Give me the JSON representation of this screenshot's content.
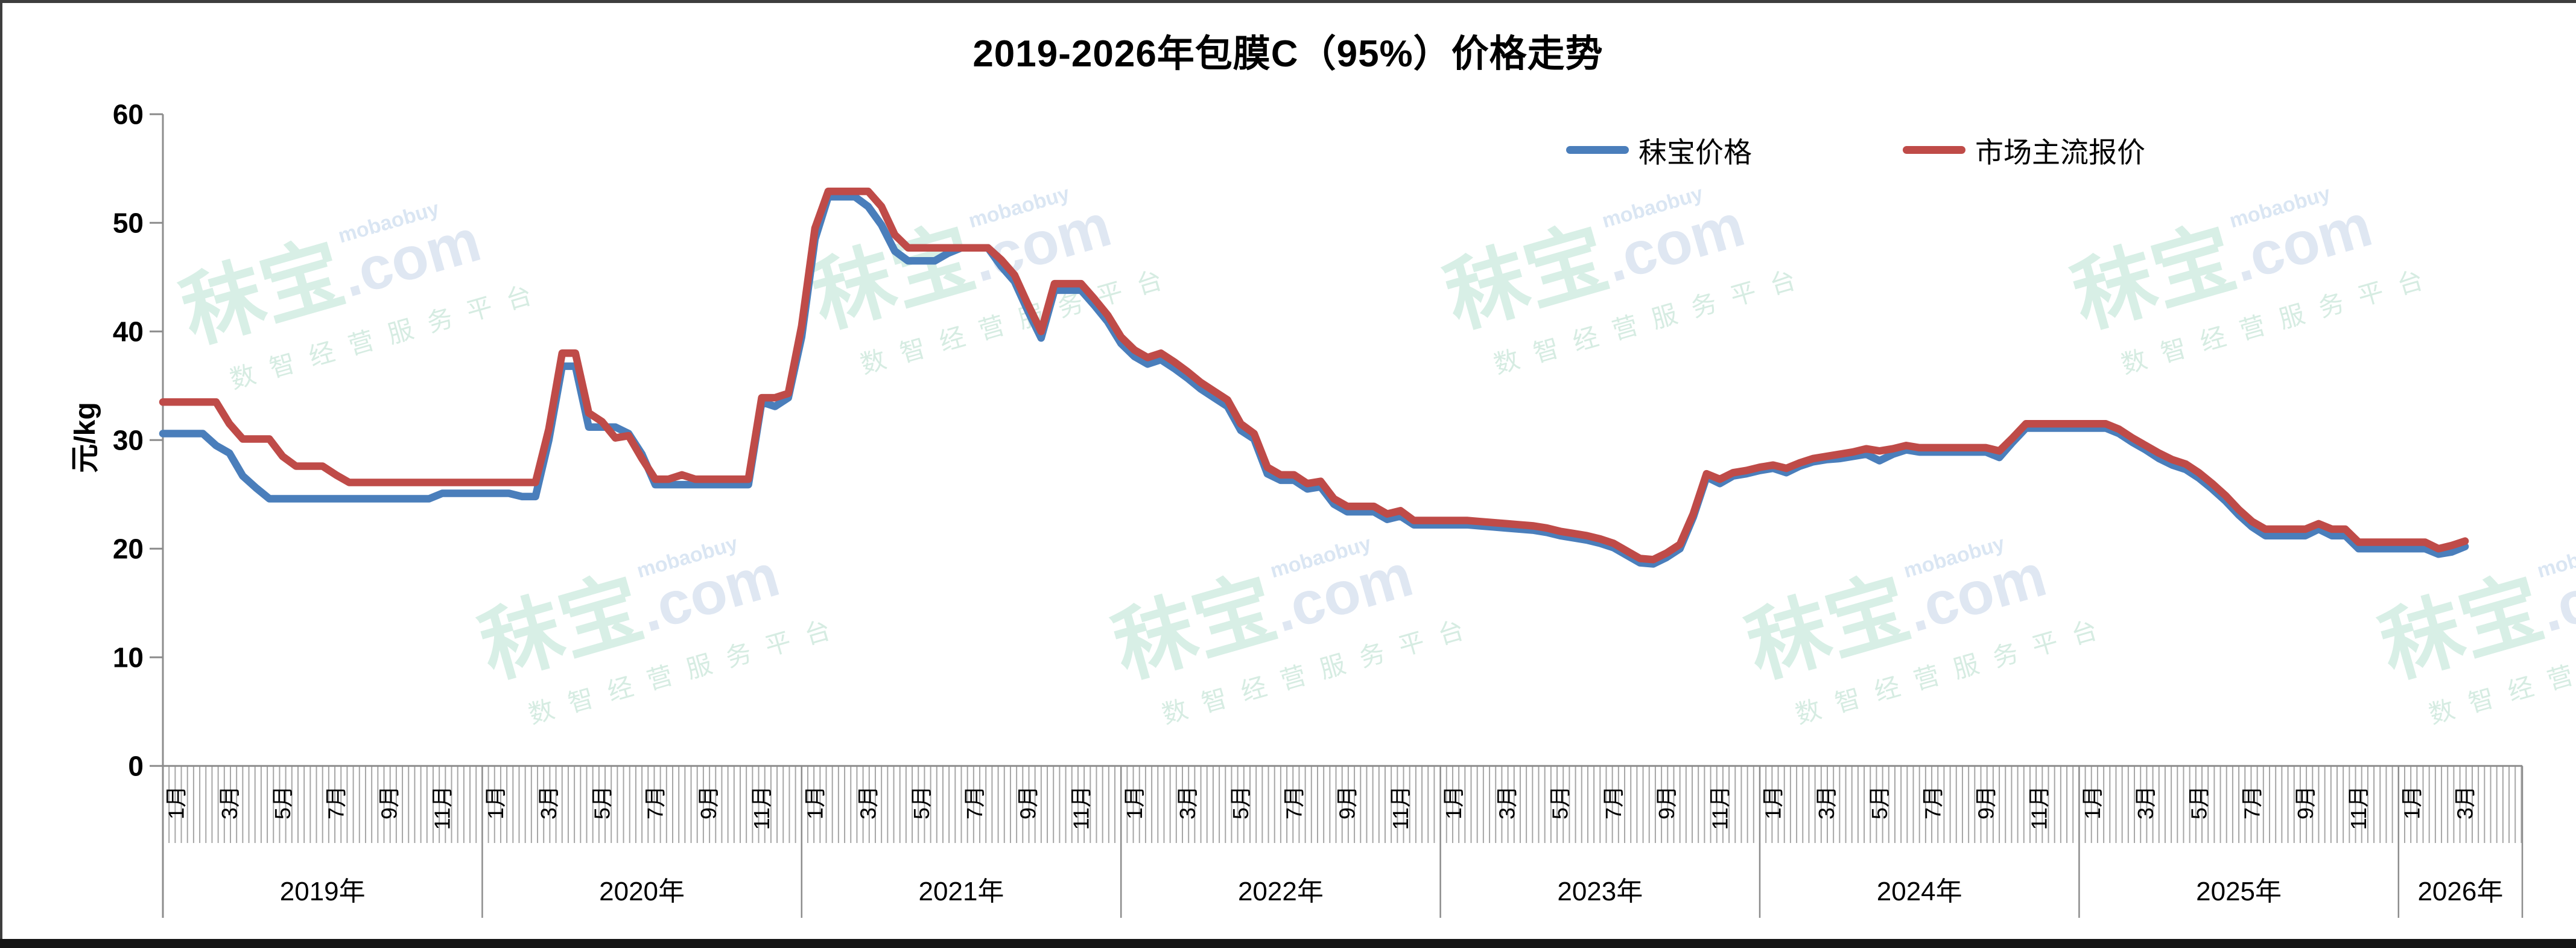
{
  "header": {
    "title": "2019-2026年包膜C（95%）价格走势"
  },
  "legend": {
    "items": [
      {
        "label": "秣宝价格",
        "color": "#4a7ebb"
      },
      {
        "label": "市场主流报价",
        "color": "#bf4b48"
      }
    ]
  },
  "y_axis": {
    "label": "元/kg"
  },
  "watermark": {
    "brand": "秣宝",
    "domain": ".com",
    "latin": "mobaobuy",
    "tagline": "数智经营服务平台"
  },
  "chart_data": {
    "type": "line",
    "title": "2019-2026年包膜C（95%）价格走势",
    "xlabel": "",
    "ylabel": "元/kg",
    "ylim": [
      0,
      60
    ],
    "yticks": [
      0,
      10,
      20,
      30,
      40,
      50,
      60
    ],
    "grid": false,
    "legend_position": "top-right",
    "x_unit": "months since 2019-01; points sampled every half month (step 0.5)",
    "x_start": 0,
    "x_step": 0.5,
    "x_axis": {
      "years": [
        {
          "label": "2019年",
          "months": [
            "1月",
            "3月",
            "5月",
            "7月",
            "9月",
            "11月"
          ]
        },
        {
          "label": "2020年",
          "months": [
            "1月",
            "3月",
            "5月",
            "7月",
            "9月",
            "11月"
          ]
        },
        {
          "label": "2021年",
          "months": [
            "1月",
            "3月",
            "5月",
            "7月",
            "9月",
            "11月"
          ]
        },
        {
          "label": "2022年",
          "months": [
            "1月",
            "3月",
            "5月",
            "7月",
            "9月",
            "11月"
          ]
        },
        {
          "label": "2023年",
          "months": [
            "1月",
            "3月",
            "5月",
            "7月",
            "9月",
            "11月"
          ]
        },
        {
          "label": "2024年",
          "months": [
            "1月",
            "3月",
            "5月",
            "7月",
            "9月",
            "11月"
          ]
        },
        {
          "label": "2025年",
          "months": [
            "1月",
            "3月",
            "5月",
            "7月",
            "9月",
            "11月"
          ]
        },
        {
          "label": "2026年",
          "months": [
            "1月",
            "3月"
          ]
        }
      ]
    },
    "series": [
      {
        "name": "秣宝价格",
        "color": "#4a7ebb",
        "values": [
          30.6,
          30.6,
          30.6,
          30.6,
          29.5,
          28.8,
          26.7,
          25.6,
          24.6,
          24.6,
          24.6,
          24.6,
          24.6,
          24.6,
          24.6,
          24.6,
          24.6,
          24.6,
          24.6,
          24.6,
          24.6,
          25.1,
          25.1,
          25.1,
          25.1,
          25.1,
          25.1,
          24.8,
          24.8,
          30.0,
          36.8,
          36.8,
          31.2,
          31.2,
          31.2,
          30.6,
          28.7,
          25.9,
          25.9,
          25.9,
          25.9,
          25.9,
          25.9,
          25.9,
          25.9,
          33.5,
          33.1,
          33.9,
          39.5,
          48.5,
          52.4,
          52.4,
          52.4,
          51.5,
          49.8,
          47.4,
          46.5,
          46.5,
          46.5,
          47.2,
          47.7,
          47.7,
          47.7,
          46.0,
          44.6,
          41.9,
          39.4,
          43.8,
          43.8,
          43.8,
          42.4,
          40.9,
          38.9,
          37.7,
          37.0,
          37.4,
          36.6,
          35.7,
          34.7,
          33.9,
          33.1,
          30.9,
          30.1,
          26.9,
          26.3,
          26.3,
          25.5,
          25.7,
          24.1,
          23.4,
          23.4,
          23.4,
          22.7,
          23.0,
          22.2,
          22.2,
          22.2,
          22.2,
          22.2,
          22.1,
          22.0,
          21.9,
          21.8,
          21.7,
          21.5,
          21.2,
          21.0,
          20.8,
          20.5,
          20.1,
          19.4,
          18.7,
          18.6,
          19.2,
          20.0,
          22.9,
          26.6,
          26.0,
          26.7,
          26.9,
          27.2,
          27.4,
          27.0,
          27.6,
          28.0,
          28.2,
          28.3,
          28.5,
          28.7,
          28.1,
          28.7,
          29.1,
          28.9,
          28.9,
          28.9,
          28.9,
          28.9,
          28.9,
          28.4,
          29.8,
          31.1,
          31.1,
          31.1,
          31.1,
          31.1,
          31.1,
          31.1,
          30.6,
          29.8,
          29.1,
          28.3,
          27.7,
          27.3,
          26.5,
          25.5,
          24.4,
          23.1,
          22.0,
          21.2,
          21.2,
          21.2,
          21.2,
          21.8,
          21.2,
          21.2,
          20.0,
          20.0,
          20.0,
          20.0,
          20.0,
          20.0,
          19.5,
          19.7,
          20.2
        ]
      },
      {
        "name": "市场主流报价",
        "color": "#bf4b48",
        "values": [
          33.5,
          33.5,
          33.5,
          33.5,
          33.5,
          31.5,
          30.1,
          30.1,
          30.1,
          28.5,
          27.6,
          27.6,
          27.6,
          26.8,
          26.1,
          26.1,
          26.1,
          26.1,
          26.1,
          26.1,
          26.1,
          26.1,
          26.1,
          26.1,
          26.1,
          26.1,
          26.1,
          26.1,
          26.1,
          31.0,
          38.0,
          38.0,
          32.5,
          31.7,
          30.2,
          30.4,
          28.3,
          26.4,
          26.4,
          26.8,
          26.4,
          26.4,
          26.4,
          26.4,
          26.4,
          33.9,
          33.9,
          34.3,
          40.5,
          49.5,
          52.9,
          52.9,
          52.9,
          52.9,
          51.5,
          48.9,
          47.7,
          47.7,
          47.7,
          47.7,
          47.7,
          47.7,
          47.7,
          46.6,
          45.2,
          42.5,
          40.0,
          44.4,
          44.4,
          44.4,
          43.0,
          41.5,
          39.5,
          38.3,
          37.6,
          38.0,
          37.2,
          36.3,
          35.3,
          34.5,
          33.7,
          31.5,
          30.6,
          27.5,
          26.8,
          26.8,
          26.0,
          26.2,
          24.6,
          23.9,
          23.9,
          23.9,
          23.2,
          23.5,
          22.6,
          22.6,
          22.6,
          22.6,
          22.6,
          22.5,
          22.4,
          22.3,
          22.2,
          22.1,
          21.9,
          21.6,
          21.4,
          21.2,
          20.9,
          20.5,
          19.8,
          19.1,
          19.0,
          19.6,
          20.4,
          23.2,
          26.9,
          26.4,
          27.0,
          27.2,
          27.5,
          27.7,
          27.4,
          27.9,
          28.3,
          28.5,
          28.7,
          28.9,
          29.2,
          29.0,
          29.2,
          29.5,
          29.3,
          29.3,
          29.3,
          29.3,
          29.3,
          29.3,
          29.0,
          30.2,
          31.5,
          31.5,
          31.5,
          31.5,
          31.5,
          31.5,
          31.5,
          31.0,
          30.2,
          29.5,
          28.8,
          28.2,
          27.8,
          27.0,
          26.0,
          24.9,
          23.6,
          22.5,
          21.8,
          21.8,
          21.8,
          21.8,
          22.3,
          21.8,
          21.8,
          20.6,
          20.6,
          20.6,
          20.6,
          20.6,
          20.6,
          20.0,
          20.3,
          20.7
        ]
      }
    ]
  }
}
